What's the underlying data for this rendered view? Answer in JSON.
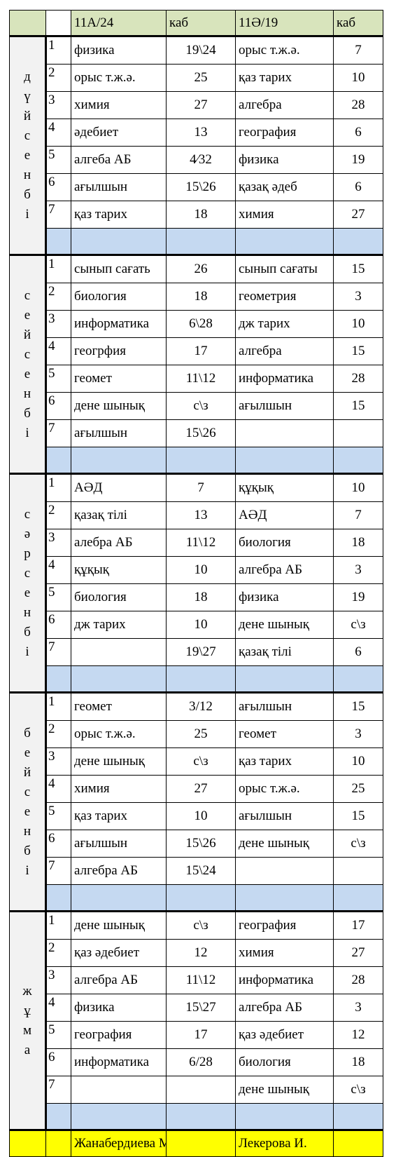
{
  "header": {
    "class_a": "11А/24",
    "room_a": "каб",
    "class_b": "11Ә/19",
    "room_b": "каб"
  },
  "days": [
    {
      "name": "дүйсенбі",
      "lessons": [
        {
          "n": "1",
          "subject_a": "физика",
          "room_a": "19\\24",
          "subject_b": "орыс т.ж.ә.",
          "room_b": "7"
        },
        {
          "n": "2",
          "subject_a": "орыс т.ж.ә.",
          "room_a": "25",
          "subject_b": "қаз тарих",
          "room_b": "10"
        },
        {
          "n": "3",
          "subject_a": "химия",
          "room_a": "27",
          "subject_b": "алгебра",
          "room_b": "28"
        },
        {
          "n": "4",
          "subject_a": "әдебиет",
          "room_a": "13",
          "subject_b": "география",
          "room_b": "6"
        },
        {
          "n": "5",
          "subject_a": "алгеба АБ",
          "room_a": "4∕32",
          "subject_b": "физика",
          "room_b": "19"
        },
        {
          "n": "6",
          "subject_a": "ағылшын",
          "room_a": "15\\26",
          "subject_b": "қазақ әдеб",
          "room_b": "6"
        },
        {
          "n": "7",
          "subject_a": "қаз тарих",
          "room_a": "18",
          "subject_b": "химия",
          "room_b": "27"
        }
      ]
    },
    {
      "name": "сейсенбі",
      "lessons": [
        {
          "n": "1",
          "subject_a": "сынып сағать",
          "room_a": "26",
          "subject_b": "сынып сағаты",
          "room_b": "15"
        },
        {
          "n": "2",
          "subject_a": "биология",
          "room_a": "18",
          "subject_b": "геометрия",
          "room_b": "3"
        },
        {
          "n": "3",
          "subject_a": "информатика",
          "room_a": "6\\28",
          "subject_b": "дж тарих",
          "room_b": "10"
        },
        {
          "n": "4",
          "subject_a": "геогрфия",
          "room_a": "17",
          "subject_b": "алгебра",
          "room_b": "15"
        },
        {
          "n": "5",
          "subject_a": "геомет",
          "room_a": "11\\12",
          "subject_b": "информатика",
          "room_b": "28"
        },
        {
          "n": "6",
          "subject_a": "дене шынық",
          "room_a": "с\\з",
          "subject_b": "ағылшын",
          "room_b": "15"
        },
        {
          "n": "7",
          "subject_a": "ағылшын",
          "room_a": "15\\26",
          "subject_b": "",
          "room_b": ""
        }
      ]
    },
    {
      "name": "сәрсенбі",
      "lessons": [
        {
          "n": "1",
          "subject_a": "АӘД",
          "room_a": "7",
          "subject_b": "құқық",
          "room_b": "10"
        },
        {
          "n": "2",
          "subject_a": "қазақ тілі",
          "room_a": "13",
          "subject_b": "АӘД",
          "room_b": "7"
        },
        {
          "n": "3",
          "subject_a": "алебра АБ",
          "room_a": "11\\12",
          "subject_b": "биология",
          "room_b": "18"
        },
        {
          "n": "4",
          "subject_a": "құқық",
          "room_a": "10",
          "subject_b": "алгебра АБ",
          "room_b": "3"
        },
        {
          "n": "5",
          "subject_a": "биология",
          "room_a": "18",
          "subject_b": "физика",
          "room_b": "19"
        },
        {
          "n": "6",
          "subject_a": "дж тарих",
          "room_a": "10",
          "subject_b": "дене шынық",
          "room_b": "с\\з"
        },
        {
          "n": "7",
          "subject_a": "",
          "room_a": "19\\27",
          "subject_b": "қазақ тілі",
          "room_b": "6"
        }
      ]
    },
    {
      "name": "бейсенбі",
      "lessons": [
        {
          "n": "1",
          "subject_a": "геомет",
          "room_a": "3/12",
          "subject_b": "ағылшын",
          "room_b": "15"
        },
        {
          "n": "2",
          "subject_a": "орыс т.ж.ә.",
          "room_a": "25",
          "subject_b": "геомет",
          "room_b": "3"
        },
        {
          "n": "3",
          "subject_a": "дене шынық",
          "room_a": "с\\з",
          "subject_b": "қаз тарих",
          "room_b": "10"
        },
        {
          "n": "4",
          "subject_a": "химия",
          "room_a": "27",
          "subject_b": "орыс т.ж.ә.",
          "room_b": "25"
        },
        {
          "n": "5",
          "subject_a": "қаз тарих",
          "room_a": "10",
          "subject_b": "ағылшын",
          "room_b": "15"
        },
        {
          "n": "6",
          "subject_a": "ағылшын",
          "room_a": "15\\26",
          "subject_b": "дене шынық",
          "room_b": "с\\з"
        },
        {
          "n": "7",
          "subject_a": "алгебра АБ",
          "room_a": "15\\24",
          "subject_b": "",
          "room_b": ""
        }
      ]
    },
    {
      "name": "жұма",
      "lessons": [
        {
          "n": "1",
          "subject_a": "дене шынық",
          "room_a": "с\\з",
          "subject_b": "география",
          "room_b": "17"
        },
        {
          "n": "2",
          "subject_a": "қаз әдебиет",
          "room_a": "12",
          "subject_b": "химия",
          "room_b": "27"
        },
        {
          "n": "3",
          "subject_a": "алгебра АБ",
          "room_a": "11\\12",
          "subject_b": "информатика",
          "room_b": "28"
        },
        {
          "n": "4",
          "subject_a": "физика",
          "room_a": "15\\27",
          "subject_b": "алгебра АБ",
          "room_b": "3"
        },
        {
          "n": "5",
          "subject_a": "география",
          "room_a": "17",
          "subject_b": "қаз әдебиет",
          "room_b": "12"
        },
        {
          "n": "6",
          "subject_a": "информатика",
          "room_a": "6/28",
          "subject_b": "биология",
          "room_b": "18"
        },
        {
          "n": "7",
          "subject_a": "",
          "room_a": "",
          "subject_b": "дене шынық",
          "room_b": "с\\з"
        }
      ]
    }
  ],
  "footer": {
    "teacher_a": "Жанабердиева М.",
    "teacher_b": "Лекерова И."
  },
  "colors": {
    "header_green": "#d8e4bc",
    "separator_blue": "#c5d9f1",
    "day_gray": "#f2f2f2",
    "footer_yellow": "#ffff00"
  }
}
